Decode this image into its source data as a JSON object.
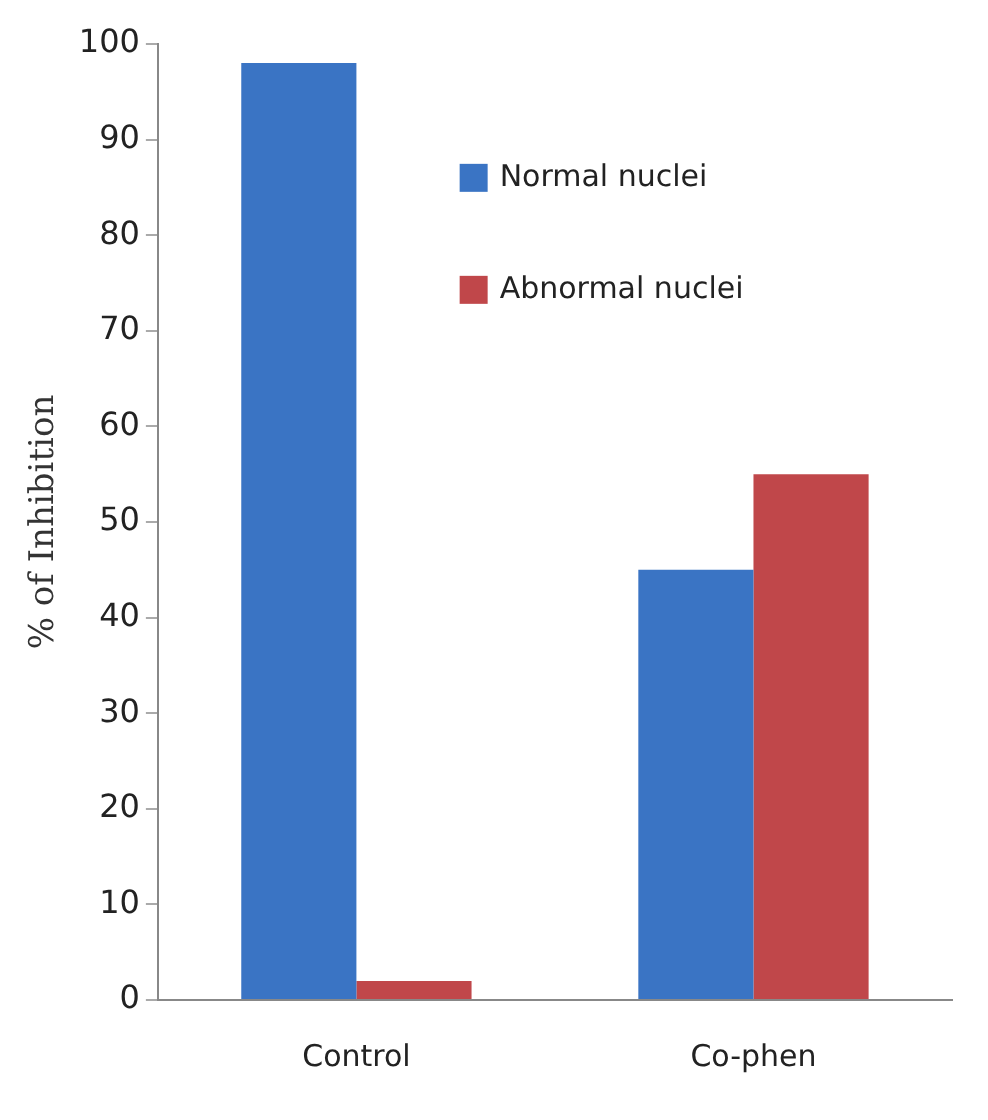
{
  "chart_data": {
    "type": "bar",
    "ylabel": "% of Inhibition",
    "categories": [
      "Control",
      "Co-phen"
    ],
    "series": [
      {
        "name": "Normal nuclei",
        "color": "#3a74c4",
        "values": [
          98,
          45
        ]
      },
      {
        "name": "Abnormal nuclei",
        "color": "#c0474a",
        "values": [
          2,
          55
        ]
      }
    ],
    "ylim": [
      0,
      100
    ],
    "yticks": [
      0,
      10,
      20,
      30,
      40,
      50,
      60,
      70,
      80,
      90,
      100
    ],
    "grid": false,
    "legend": "top right"
  }
}
